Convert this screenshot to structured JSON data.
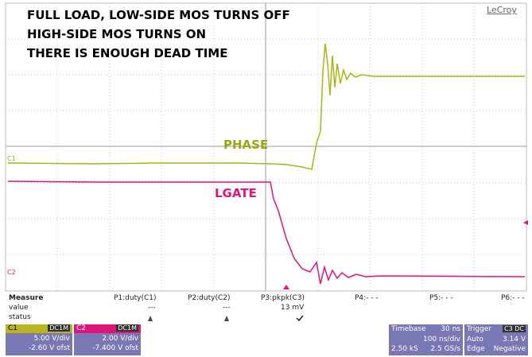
{
  "title": [
    "FULL LOAD, LOW-SIDE MOS TURNS OFF",
    "HIGH-SIDE MOS TURNS ON",
    "THERE IS ENOUGH DEAD TIME"
  ],
  "brand": "LeCroy",
  "trace_labels": {
    "phase": "PHASE",
    "lgate": "LGATE"
  },
  "channel_markers": {
    "c1": "C1",
    "c2": "C2"
  },
  "measure": {
    "header": [
      "Measure",
      "P1:duty(C1)",
      "P2:duty(C2)",
      "P3:pkpk(C3)",
      "P4:- - -",
      "P5:- - -",
      "P6:- - -"
    ],
    "value": [
      "value",
      "---",
      "---",
      "13 mV"
    ],
    "status": [
      "status"
    ]
  },
  "channels": [
    {
      "name": "C1",
      "coupling": "DC1M",
      "scale": "5.00 V/div",
      "offset": "-2.60 V ofst"
    },
    {
      "name": "C2",
      "coupling": "DC1M",
      "scale": "2.00 V/div",
      "offset": "-7.400 V ofst"
    }
  ],
  "timebase": {
    "label": "Timebase",
    "delay": "30 ns",
    "scale": "100 ns/div",
    "samples": "2.50 kS",
    "rate": "2.5 GS/s"
  },
  "trigger": {
    "label": "Trigger",
    "source": "C3 DC",
    "mode": "Auto",
    "level": "3.14 V",
    "type": "Edge",
    "slope": "Negative"
  }
}
